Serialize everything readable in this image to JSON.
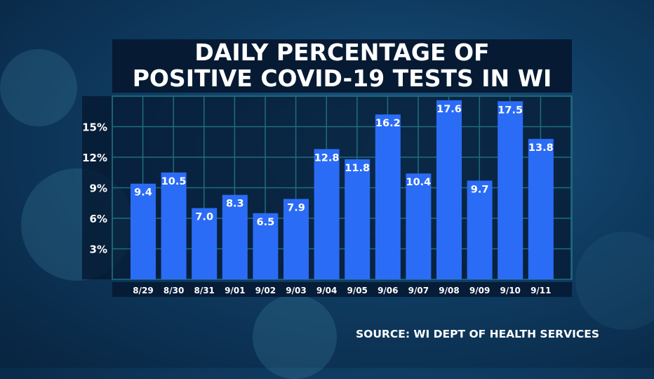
{
  "title_lines": [
    "DAILY PERCENTAGE OF",
    "POSITIVE COVID-19 TESTS IN WI"
  ],
  "source": "SOURCE: WI DEPT OF HEALTH SERVICES",
  "colors": {
    "bar": "#2b6cf6",
    "panel": "#061a33",
    "grid": "#1f6d7e"
  },
  "chart_data": {
    "type": "bar",
    "title": "DAILY PERCENTAGE OF POSITIVE COVID-19 TESTS IN WI",
    "xlabel": "",
    "ylabel": "",
    "categories": [
      "8/29",
      "8/30",
      "8/31",
      "9/01",
      "9/02",
      "9/03",
      "9/04",
      "9/05",
      "9/06",
      "9/07",
      "9/08",
      "9/09",
      "9/10",
      "9/11"
    ],
    "values": [
      9.4,
      10.5,
      7.0,
      8.3,
      6.5,
      7.9,
      12.8,
      11.8,
      16.2,
      10.4,
      17.6,
      9.7,
      17.5,
      13.8
    ],
    "value_labels": [
      "9.4",
      "10.5",
      "7.0",
      "8.3",
      "6.5",
      "7.9",
      "12.8",
      "11.8",
      "16.2",
      "10.4",
      "17.6",
      "9.7",
      "17.5",
      "13.8"
    ],
    "yticks": [
      3,
      6,
      9,
      12,
      15
    ],
    "ytick_labels": [
      "3%",
      "6%",
      "9%",
      "12%",
      "15%"
    ],
    "ylim": [
      0,
      18
    ],
    "grid": true
  }
}
